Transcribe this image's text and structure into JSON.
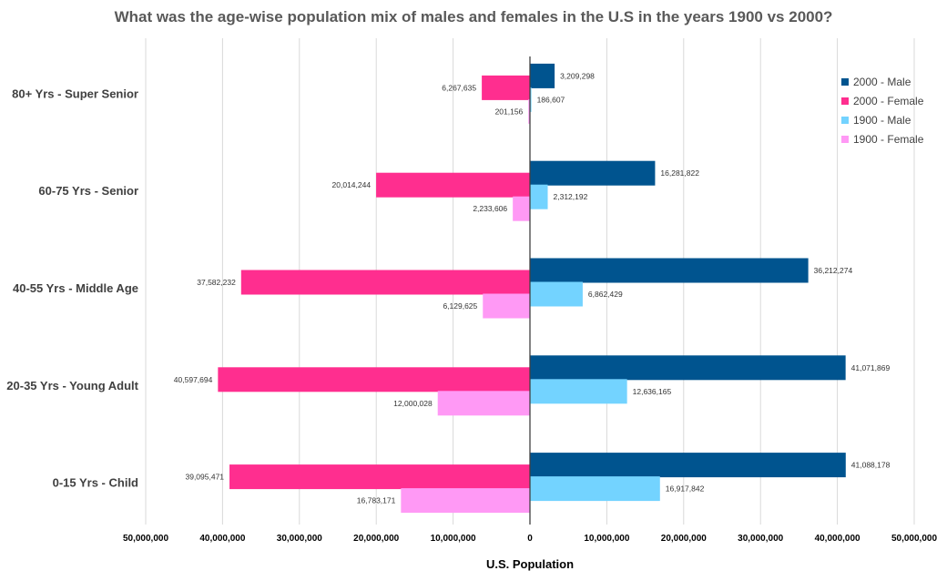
{
  "chart_data": {
    "type": "bar",
    "orientation": "horizontal",
    "title": "What was the age-wise population mix of males and females in the U.S in the years 1900 vs 2000?",
    "xlabel": "U.S. Population",
    "ylabel": "",
    "xlim": [
      -50000000,
      50000000
    ],
    "x_ticks": [
      -50000000,
      -40000000,
      -30000000,
      -20000000,
      -10000000,
      0,
      10000000,
      20000000,
      30000000,
      40000000,
      50000000
    ],
    "x_tick_labels": [
      "50,000,000",
      "40,000,000",
      "30,000,000",
      "20,000,000",
      "10,000,000",
      "0",
      "10,000,000",
      "20,000,000",
      "30,000,000",
      "40,000,000",
      "50,000,000"
    ],
    "grid": true,
    "legend_position": "top-right",
    "categories": [
      "80+ Yrs - Super Senior",
      "60-75 Yrs - Senior",
      "40-55 Yrs - Middle Age",
      "20-35 Yrs - Young Adult",
      "0-15 Yrs - Child"
    ],
    "series": [
      {
        "name": "2000 - Male",
        "side": "right",
        "color": "#00548f",
        "values": [
          3209298,
          16281822,
          36212274,
          41071869,
          41088178
        ],
        "labels": [
          "3,209,298",
          "16,281,822",
          "36,212,274",
          "41,071,869",
          "41,088,178"
        ]
      },
      {
        "name": "2000 - Female",
        "side": "left",
        "color": "#ff2e8f",
        "values": [
          6267635,
          20014244,
          37582232,
          40597694,
          39095471
        ],
        "labels": [
          "6,267,635",
          "20,014,244",
          "37,582,232",
          "40,597,694",
          "39,095,471"
        ]
      },
      {
        "name": "1900 - Male",
        "side": "right",
        "color": "#73d3ff",
        "values": [
          186607,
          2312192,
          6862429,
          12636165,
          16917842
        ],
        "labels": [
          "186,607",
          "2,312,192",
          "6,862,429",
          "12,636,165",
          "16,917,842"
        ]
      },
      {
        "name": "1900 - Female",
        "side": "left",
        "color": "#ff99f5",
        "values": [
          201156,
          2233606,
          6129625,
          12000028,
          16783171
        ],
        "labels": [
          "201,156",
          "2,233,606",
          "6,129,625",
          "12,000,028",
          "16,783,171"
        ]
      }
    ]
  }
}
